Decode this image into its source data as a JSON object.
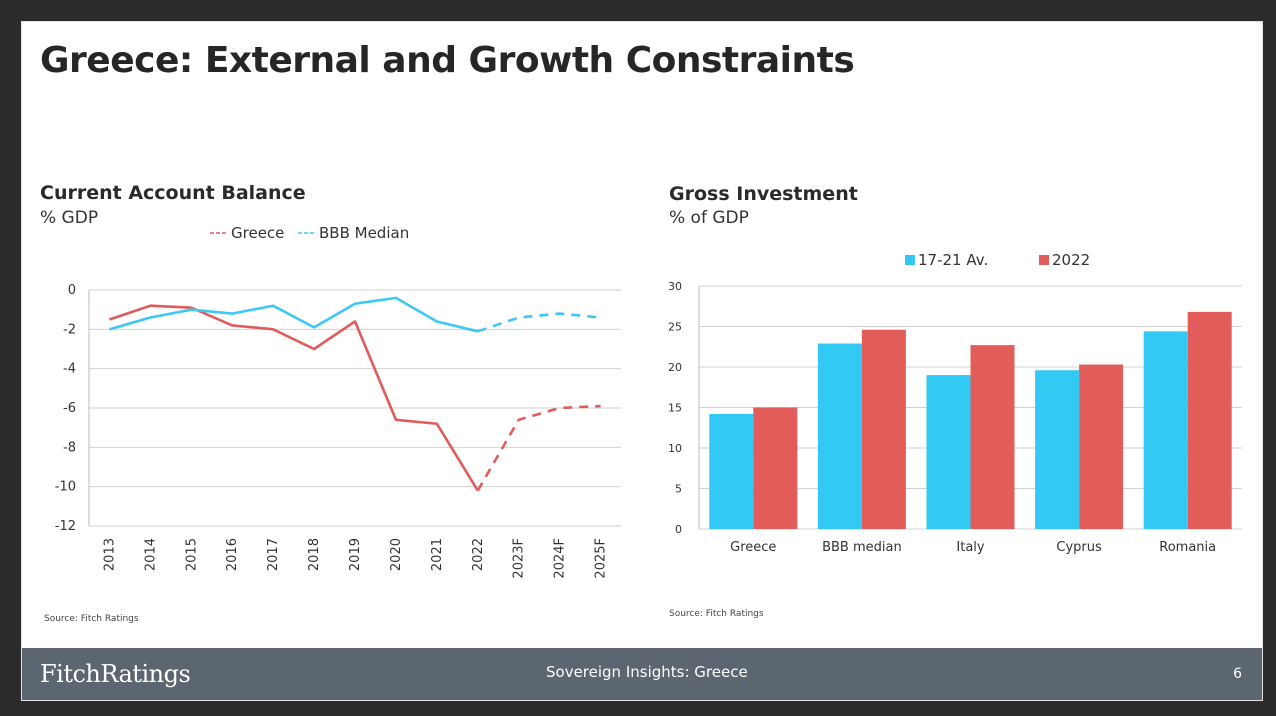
{
  "slide": {
    "title": "Greece: External and Growth Constraints",
    "footer_logo": "FitchRatings",
    "footer_center": "Sovereign Insights: Greece",
    "page_number": "6"
  },
  "chart_data": [
    {
      "type": "line",
      "title": "Current Account Balance",
      "subtitle": "% GDP",
      "source": "Source: Fitch Ratings",
      "x": [
        "2013",
        "2014",
        "2015",
        "2016",
        "2017",
        "2018",
        "2019",
        "2020",
        "2021",
        "2022",
        "2023F",
        "2024F",
        "2025F"
      ],
      "forecast_from_index": 9,
      "ylim": [
        -12,
        0
      ],
      "yticks": [
        0,
        -2,
        -4,
        -6,
        -8,
        -10,
        -12
      ],
      "ytick_labels": [
        "0",
        "-2",
        "-4",
        "-6",
        "-8",
        "-10",
        "-12"
      ],
      "grid": true,
      "legend_position": "top",
      "series": [
        {
          "name": "Greece",
          "color": "#e05c5c",
          "values": [
            -1.5,
            -0.8,
            -0.9,
            -1.8,
            -2.0,
            -3.0,
            -1.6,
            -6.6,
            -6.8,
            -10.2,
            -6.6,
            -6.0,
            -5.9
          ]
        },
        {
          "name": "BBB Median",
          "color": "#3cc8f2",
          "values": [
            -2.0,
            -1.4,
            -1.0,
            -1.2,
            -0.8,
            -1.9,
            -0.7,
            -0.4,
            -1.6,
            -2.1,
            -1.4,
            -1.2,
            -1.4
          ]
        }
      ]
    },
    {
      "type": "bar",
      "title": "Gross Investment",
      "subtitle": "% of GDP",
      "source": "Source: Fitch Ratings",
      "categories": [
        "Greece",
        "BBB median",
        "Italy",
        "Cyprus",
        "Romania"
      ],
      "ylim": [
        0,
        30
      ],
      "yticks": [
        0,
        5,
        10,
        15,
        20,
        25,
        30
      ],
      "ytick_labels": [
        "0",
        "5",
        "10",
        "15",
        "20",
        "25",
        "30"
      ],
      "grid": true,
      "legend_position": "top",
      "series": [
        {
          "name": "17-21 Av.",
          "color": "#33c9f5",
          "values": [
            14.2,
            22.9,
            19.0,
            19.6,
            24.4
          ]
        },
        {
          "name": "2022",
          "color": "#e25c59",
          "values": [
            15.0,
            24.6,
            22.7,
            20.3,
            26.8
          ]
        }
      ]
    }
  ]
}
